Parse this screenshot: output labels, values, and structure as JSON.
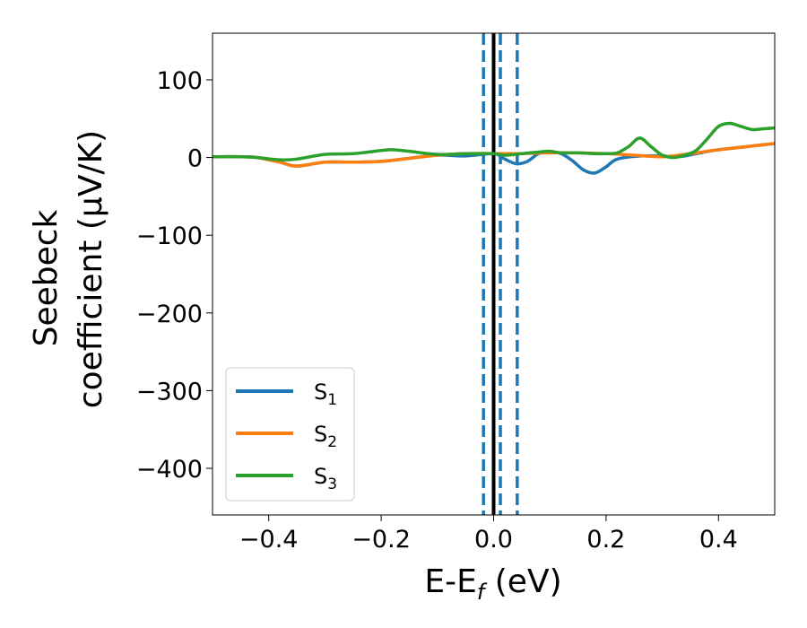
{
  "chart_data": {
    "type": "line",
    "xlabel": {
      "main": "E-E",
      "sub": "f",
      "suffix": " (eV)"
    },
    "ylabel_lines": [
      "Seebeck",
      "coefficient  (μV/K)"
    ],
    "xlim": [
      -0.5,
      0.5
    ],
    "ylim": [
      -460,
      160
    ],
    "x_ticks": [
      -0.4,
      -0.2,
      0.0,
      0.2,
      0.4
    ],
    "x_tick_labels": [
      "−0.4",
      "−0.2",
      "0.0",
      "0.2",
      "0.4"
    ],
    "y_ticks": [
      100,
      0,
      -100,
      -200,
      -300,
      -400
    ],
    "y_tick_labels": [
      "100",
      "0",
      "−100",
      "−200",
      "−300",
      "−400"
    ],
    "grid": false,
    "legend_position": "lower-left",
    "vlines": [
      {
        "x": -0.018,
        "style": "dashed",
        "color": "#1f77b4"
      },
      {
        "x": 0.012,
        "style": "dashed",
        "color": "#1f77b4"
      },
      {
        "x": 0.042,
        "style": "dashed",
        "color": "#1f77b4"
      },
      {
        "x": 0.0,
        "style": "solid",
        "color": "#000000"
      }
    ],
    "series": [
      {
        "name": "S",
        "sub": "1",
        "color": "#1f77b4",
        "x": [
          -0.5,
          -0.45,
          -0.42,
          -0.38,
          -0.35,
          -0.3,
          -0.25,
          -0.2,
          -0.15,
          -0.1,
          -0.05,
          0.0,
          0.02,
          0.04,
          0.06,
          0.08,
          0.1,
          0.12,
          0.14,
          0.16,
          0.18,
          0.2,
          0.22,
          0.26,
          0.3,
          0.32,
          0.34,
          0.36,
          0.4,
          0.45,
          0.5
        ],
        "y": [
          1,
          1,
          0,
          -6,
          -11,
          -6,
          -6,
          -5,
          -1,
          3,
          2,
          5,
          -2,
          -8,
          -5,
          5,
          7,
          5,
          -4,
          -16,
          -20,
          -12,
          -2,
          2,
          2,
          1,
          2,
          5,
          10,
          14,
          18
        ]
      },
      {
        "name": "S",
        "sub": "2",
        "color": "#ff7f0e",
        "x": [
          -0.5,
          -0.45,
          -0.42,
          -0.38,
          -0.35,
          -0.3,
          -0.25,
          -0.2,
          -0.15,
          -0.1,
          -0.05,
          0.0,
          0.05,
          0.1,
          0.15,
          0.2,
          0.25,
          0.3,
          0.35,
          0.4,
          0.45,
          0.5
        ],
        "y": [
          1,
          1,
          0,
          -6,
          -11,
          -6,
          -6,
          -5,
          -1,
          3,
          5,
          5,
          5,
          6,
          6,
          5,
          3,
          1,
          5,
          10,
          14,
          18
        ]
      },
      {
        "name": "S",
        "sub": "3",
        "color": "#2ca02c",
        "x": [
          -0.5,
          -0.45,
          -0.42,
          -0.38,
          -0.35,
          -0.3,
          -0.25,
          -0.2,
          -0.18,
          -0.15,
          -0.1,
          -0.05,
          0.0,
          0.02,
          0.05,
          0.08,
          0.1,
          0.12,
          0.15,
          0.18,
          0.2,
          0.22,
          0.24,
          0.26,
          0.28,
          0.3,
          0.32,
          0.34,
          0.36,
          0.38,
          0.4,
          0.42,
          0.44,
          0.46,
          0.48,
          0.5
        ],
        "y": [
          1,
          1,
          0,
          -3,
          -2,
          4,
          5,
          9,
          10,
          8,
          4,
          5,
          5,
          3,
          5,
          7,
          8,
          6,
          6,
          5,
          5,
          6,
          14,
          25,
          14,
          3,
          0,
          3,
          9,
          24,
          40,
          44,
          40,
          36,
          37,
          38
        ]
      }
    ]
  }
}
